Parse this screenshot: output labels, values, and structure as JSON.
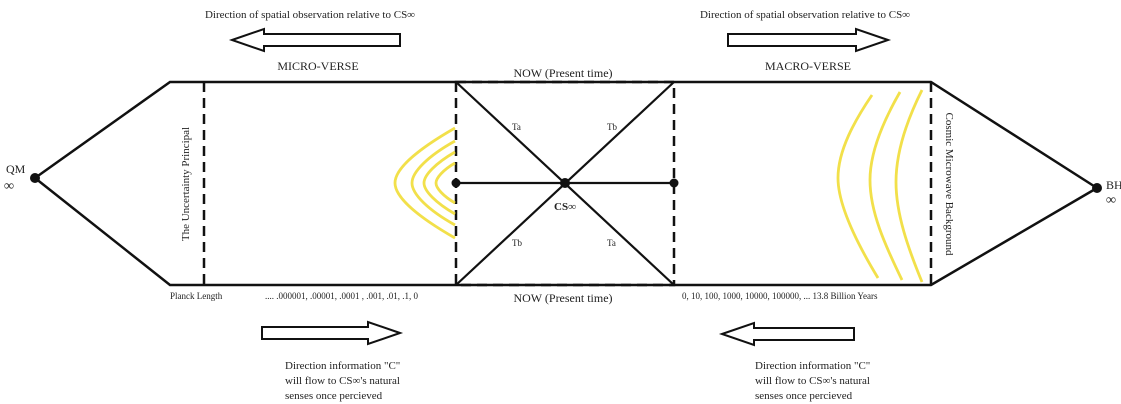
{
  "top_left_caption": "Direction of spatial observation relative to CS∞",
  "top_right_caption": "Direction of spatial observation relative to CS∞",
  "micro_label": "MICRO-VERSE",
  "macro_label": "MACRO-VERSE",
  "now_top": "NOW (Present time)",
  "now_bottom": "NOW (Present time)",
  "qm_label": "QM",
  "qm_symbol": "∞",
  "bh_label": "BH",
  "bh_symbol": "∞",
  "left_vertical": "The Uncertainty Principal",
  "right_vertical": "Cosmic Microwave Background",
  "center_label": "CS∞",
  "ta_upper": "Ta",
  "tb_upper": "Tb",
  "tb_lower": "Tb",
  "ta_lower": "Ta",
  "planck_label": "Planck Length",
  "left_scale": "....  .000001,  .00001,  .0001 ,  .001,  .01,  .1,  0",
  "right_scale": "0,  10,  100,  1000,  10000,  100000,      ...    13.8 Billion Years",
  "bottom_left_caption": [
    "Direction information \"C\"",
    "will flow to CS∞'s natural",
    "senses once percieved"
  ],
  "bottom_right_caption": [
    "Direction information \"C\"",
    "will flow to CS∞'s natural",
    "senses once percieved"
  ],
  "colors": {
    "line": "#111111",
    "wave": "#f2e04a",
    "text": "#222222"
  }
}
